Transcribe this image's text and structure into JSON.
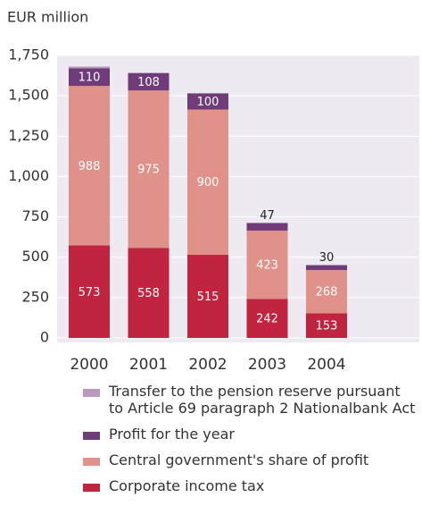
{
  "chart_data": {
    "type": "stacked_bar",
    "y_axis_label": "EUR million",
    "categories": [
      "2000",
      "2001",
      "2002",
      "2003",
      "2004"
    ],
    "series": [
      {
        "name": "Corporate income tax",
        "color": "#c1243f",
        "values": [
          573,
          558,
          515,
          242,
          153
        ]
      },
      {
        "name": "Central government's share of profit",
        "color": "#e0928a",
        "values": [
          988,
          975,
          900,
          423,
          268
        ]
      },
      {
        "name": "Profit for the year",
        "color": "#6f3b78",
        "values": [
          110,
          108,
          100,
          47,
          30
        ]
      },
      {
        "name": "Transfer to the pension reserve pursuant\nto Article 69 paragraph 2 Nationalbank Act",
        "color": "#b99abd",
        "values": [
          10,
          0,
          0,
          0,
          0
        ]
      }
    ],
    "ylim": [
      0,
      1750
    ],
    "yticks": [
      0,
      250,
      500,
      750,
      {
        "value": 1000,
        "label": "1,000"
      },
      {
        "value": 1250,
        "label": "1,250"
      },
      {
        "value": 1500,
        "label": "1,500"
      },
      {
        "value": 1750,
        "label": "1,750"
      }
    ],
    "grid": true,
    "labeled_series": [
      0,
      1,
      2
    ]
  }
}
